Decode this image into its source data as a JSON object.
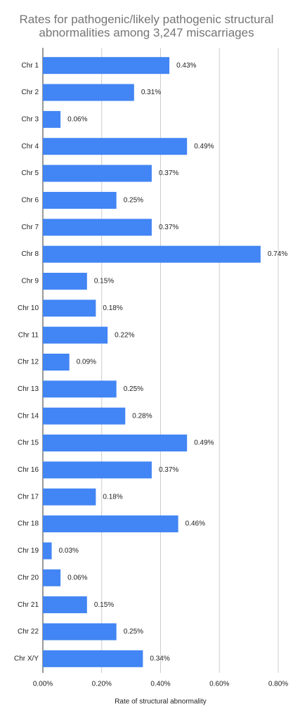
{
  "chart_data": {
    "type": "hbar",
    "title": "Rates for pathogenic/likely pathogenic structural abnormalities among 3,247 miscarriages",
    "x_label": "Rate of structural abnormality",
    "categories": [
      "Chr 1",
      "Chr 2",
      "Chr 3",
      "Chr 4",
      "Chr 5",
      "Chr 6",
      "Chr 7",
      "Chr 8",
      "Chr 9",
      "Chr 10",
      "Chr 11",
      "Chr 12",
      "Chr 13",
      "Chr 14",
      "Chr 15",
      "Chr 16",
      "Chr 17",
      "Chr 18",
      "Chr 19",
      "Chr 20",
      "Chr 21",
      "Chr 22",
      "Chr X/Y"
    ],
    "values": [
      0.43,
      0.31,
      0.06,
      0.49,
      0.37,
      0.25,
      0.37,
      0.74,
      0.15,
      0.18,
      0.22,
      0.09,
      0.25,
      0.28,
      0.49,
      0.37,
      0.18,
      0.46,
      0.03,
      0.06,
      0.15,
      0.25,
      0.34
    ],
    "value_labels": [
      "0.43%",
      "0.31%",
      "0.06%",
      "0.49%",
      "0.37%",
      "0.25%",
      "0.37%",
      "0.74%",
      "0.15%",
      "0.18%",
      "0.22%",
      "0.09%",
      "0.25%",
      "0.28%",
      "0.49%",
      "0.37%",
      "0.18%",
      "0.46%",
      "0.03%",
      "0.06%",
      "0.15%",
      "0.25%",
      "0.34%"
    ],
    "color": "#4285f4",
    "xlim": [
      0,
      0.8
    ],
    "xticks": [
      {
        "value": 0,
        "label": "0.00%"
      },
      {
        "value": 0.2,
        "label": "0.20%"
      },
      {
        "value": 0.4,
        "label": "0.40%"
      },
      {
        "value": 0.6,
        "label": "0.60%"
      },
      {
        "value": 0.8,
        "label": "0.80%"
      }
    ],
    "grid": true
  }
}
